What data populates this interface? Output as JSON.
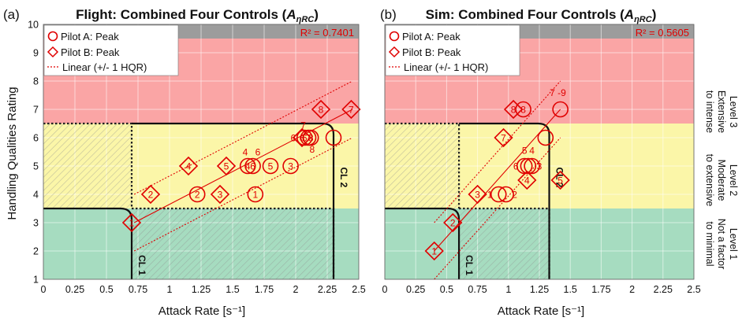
{
  "colors": {
    "level1": "#a6dcc0",
    "level2": "#fbf6a8",
    "level3": "#faa5a5",
    "over9": "#9c9c9c",
    "marker": "#e00000"
  },
  "chart_data": [
    {
      "type": "scatter",
      "panel_label": "(a)",
      "title_main": "Flight: Combined Four Controls (",
      "title_sym": "A",
      "title_sub": "ηRC",
      "title_close": ")",
      "xlabel": "Attack Rate [s⁻¹]",
      "ylabel": "Handling Qualities Rating",
      "xlim": [
        0,
        2.5
      ],
      "ylim": [
        1,
        10
      ],
      "xticks": [
        "0",
        "0.25",
        "0.5",
        "0.75",
        "1",
        "1.25",
        "1.5",
        "1.75",
        "2",
        "2.25",
        "2.5"
      ],
      "yticks": [
        "1",
        "2",
        "3",
        "4",
        "5",
        "6",
        "7",
        "8",
        "9",
        "10"
      ],
      "r2": "R² = 0.7401",
      "legend": [
        "Pilot A: Peak",
        "Pilot B: Peak",
        "Linear (+/- 1 HQR)"
      ],
      "regression": {
        "p1": [
          0.72,
          3.0
        ],
        "p2": [
          2.45,
          7.0
        ],
        "band": 1
      },
      "cl1_label": "CL 1",
      "cl2_label": "CL 2",
      "cl1_boundary": {
        "x": 0.7,
        "y": 3.5
      },
      "cl2_boundary": {
        "x": 2.3,
        "y": 6.5
      },
      "pilot_a": [
        {
          "x": 1.62,
          "y": 5,
          "label": "4"
        },
        {
          "x": 1.66,
          "y": 5,
          "label": "6"
        },
        {
          "x": 1.8,
          "y": 5,
          "label": "5"
        },
        {
          "x": 1.96,
          "y": 5,
          "label": "3"
        },
        {
          "x": 1.22,
          "y": 4,
          "label": "2"
        },
        {
          "x": 1.68,
          "y": 4,
          "label": "1"
        },
        {
          "x": 2.07,
          "y": 6,
          "label": "6"
        },
        {
          "x": 2.1,
          "y": 6,
          "label": "7"
        },
        {
          "x": 2.12,
          "y": 6,
          "label": "8"
        },
        {
          "x": 2.3,
          "y": 6,
          "label": ""
        }
      ],
      "pilot_b": [
        {
          "x": 0.7,
          "y": 3,
          "label": "1"
        },
        {
          "x": 0.85,
          "y": 4,
          "label": "2"
        },
        {
          "x": 1.4,
          "y": 4,
          "label": "3"
        },
        {
          "x": 1.15,
          "y": 5,
          "label": "4"
        },
        {
          "x": 1.45,
          "y": 5,
          "label": "5"
        },
        {
          "x": 2.05,
          "y": 6,
          "label": "6"
        },
        {
          "x": 2.2,
          "y": 7,
          "label": "8"
        },
        {
          "x": 2.44,
          "y": 7,
          "label": "7"
        }
      ],
      "annotations": [
        {
          "text": "4",
          "x": 1.6,
          "y": 5.5
        },
        {
          "text": "6",
          "x": 1.7,
          "y": 5.5
        },
        {
          "text": "7",
          "x": 2.06,
          "y": 6.45
        },
        {
          "text": "6",
          "x": 1.98,
          "y": 6.0
        },
        {
          "text": "8",
          "x": 2.13,
          "y": 5.6
        }
      ]
    },
    {
      "type": "scatter",
      "panel_label": "(b)",
      "title_main": "Sim: Combined Four Controls (",
      "title_sym": "A",
      "title_sub": "ηRC",
      "title_close": ")",
      "xlabel": "Attack Rate [s⁻¹]",
      "ylabel": "",
      "xlim": [
        0,
        2.5
      ],
      "ylim": [
        1,
        10
      ],
      "xticks": [
        "0",
        "0.25",
        "0.5",
        "0.75",
        "1",
        "1.25",
        "1.5",
        "1.75",
        "2",
        "2.25",
        "2.5"
      ],
      "yticks": [
        "1",
        "2",
        "3",
        "4",
        "5",
        "6",
        "7",
        "8",
        "9",
        "10"
      ],
      "r2": "R² = 0.5605",
      "legend": [
        "Pilot A: Peak",
        "Pilot B: Peak",
        "Linear (+/- 1 HQR)"
      ],
      "regression": {
        "p1": [
          0.4,
          2.0
        ],
        "p2": [
          1.42,
          7.0
        ],
        "band": 1
      },
      "cl1_label": "CL 1",
      "cl2_label": "CL 2",
      "cl1_boundary": {
        "x": 0.6,
        "y": 3.5
      },
      "cl2_boundary": {
        "x": 1.33,
        "y": 6.5
      },
      "pilot_a": [
        {
          "x": 0.92,
          "y": 4,
          "label": ""
        },
        {
          "x": 0.98,
          "y": 4,
          "label": ""
        },
        {
          "x": 1.13,
          "y": 5,
          "label": ""
        },
        {
          "x": 1.16,
          "y": 5,
          "label": ""
        },
        {
          "x": 1.19,
          "y": 5,
          "label": ""
        },
        {
          "x": 1.3,
          "y": 6,
          "label": ""
        },
        {
          "x": 1.12,
          "y": 7,
          "label": "8"
        },
        {
          "x": 1.42,
          "y": 7,
          "label": ""
        }
      ],
      "pilot_b": [
        {
          "x": 0.4,
          "y": 2,
          "label": "1"
        },
        {
          "x": 0.55,
          "y": 3,
          "label": "2"
        },
        {
          "x": 0.75,
          "y": 4,
          "label": "3"
        },
        {
          "x": 1.15,
          "y": 4.5,
          "label": "4"
        },
        {
          "x": 1.42,
          "y": 4.5,
          "label": "5"
        },
        {
          "x": 0.96,
          "y": 6,
          "label": "7"
        },
        {
          "x": 1.04,
          "y": 7,
          "label": "8"
        }
      ],
      "annotations": [
        {
          "text": "1",
          "x": 0.85,
          "y": 4.0
        },
        {
          "text": "2",
          "x": 1.05,
          "y": 4.0
        },
        {
          "text": "6",
          "x": 1.06,
          "y": 5.0
        },
        {
          "text": "5",
          "x": 1.13,
          "y": 5.55
        },
        {
          "text": "4",
          "x": 1.19,
          "y": 5.55
        },
        {
          "text": "3",
          "x": 1.25,
          "y": 5.0
        },
        {
          "text": "7 -9",
          "x": 1.4,
          "y": 7.6
        }
      ]
    }
  ],
  "levels": [
    {
      "name": "Level 3",
      "desc1": "Extensive",
      "desc2": "to intense"
    },
    {
      "name": "Level 2",
      "desc1": "Moderate",
      "desc2": "to extensive"
    },
    {
      "name": "Level 1",
      "desc1": "Not a factor",
      "desc2": "to minimal"
    }
  ]
}
